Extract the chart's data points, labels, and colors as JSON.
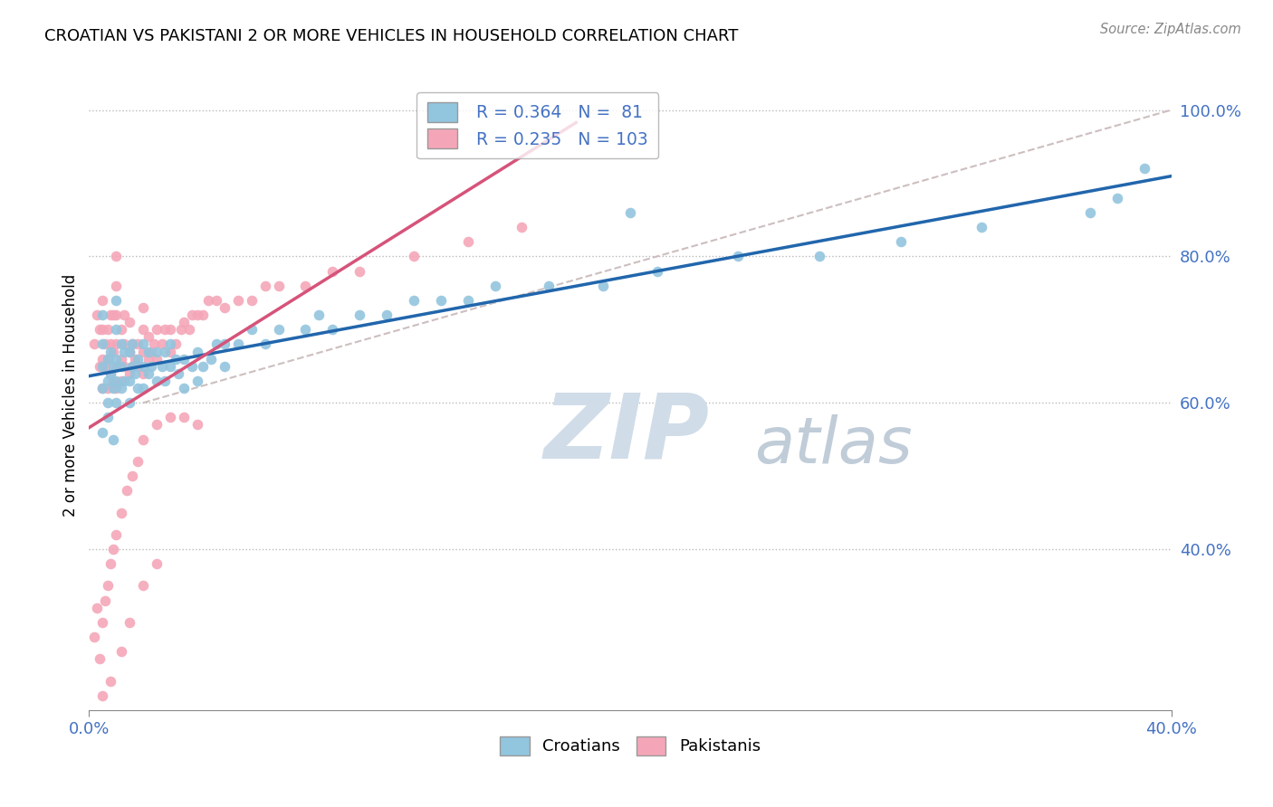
{
  "title": "CROATIAN VS PAKISTANI 2 OR MORE VEHICLES IN HOUSEHOLD CORRELATION CHART",
  "source": "Source: ZipAtlas.com",
  "ylabel": "2 or more Vehicles in Household",
  "xmin": 0.0,
  "xmax": 0.4,
  "ymin": 0.18,
  "ymax": 1.04,
  "yticks": [
    0.4,
    0.6,
    0.8,
    1.0
  ],
  "ytick_labels": [
    "40.0%",
    "60.0%",
    "80.0%",
    "100.0%"
  ],
  "croatian_R": 0.364,
  "croatian_N": 81,
  "pakistani_R": 0.235,
  "pakistani_N": 103,
  "blue_color": "#92c5de",
  "pink_color": "#f4a6b8",
  "blue_line_color": "#2166ac",
  "pink_line_color": "#d6537a",
  "trendline_color": "#c8b8b8",
  "legend_text_color": "#4472c4",
  "zip_color": "#d0dce8",
  "atlas_color": "#c0ccd8",
  "croatian_x": [
    0.005,
    0.005,
    0.005,
    0.005,
    0.007,
    0.007,
    0.007,
    0.008,
    0.008,
    0.009,
    0.009,
    0.01,
    0.01,
    0.01,
    0.01,
    0.01,
    0.012,
    0.012,
    0.012,
    0.013,
    0.013,
    0.015,
    0.015,
    0.015,
    0.016,
    0.016,
    0.017,
    0.018,
    0.018,
    0.02,
    0.02,
    0.02,
    0.022,
    0.022,
    0.023,
    0.025,
    0.025,
    0.027,
    0.028,
    0.028,
    0.03,
    0.03,
    0.032,
    0.033,
    0.035,
    0.035,
    0.038,
    0.04,
    0.04,
    0.042,
    0.045,
    0.047,
    0.05,
    0.05,
    0.055,
    0.06,
    0.065,
    0.07,
    0.08,
    0.085,
    0.09,
    0.1,
    0.11,
    0.12,
    0.13,
    0.14,
    0.15,
    0.17,
    0.19,
    0.21,
    0.24,
    0.27,
    0.3,
    0.33,
    0.37,
    0.38,
    0.39,
    0.005,
    0.007,
    0.009,
    0.2
  ],
  "croatian_y": [
    0.62,
    0.65,
    0.68,
    0.72,
    0.6,
    0.63,
    0.66,
    0.64,
    0.67,
    0.62,
    0.65,
    0.6,
    0.63,
    0.66,
    0.7,
    0.74,
    0.62,
    0.65,
    0.68,
    0.63,
    0.67,
    0.6,
    0.63,
    0.67,
    0.65,
    0.68,
    0.64,
    0.62,
    0.66,
    0.62,
    0.65,
    0.68,
    0.64,
    0.67,
    0.65,
    0.63,
    0.67,
    0.65,
    0.63,
    0.67,
    0.65,
    0.68,
    0.66,
    0.64,
    0.62,
    0.66,
    0.65,
    0.63,
    0.67,
    0.65,
    0.66,
    0.68,
    0.65,
    0.68,
    0.68,
    0.7,
    0.68,
    0.7,
    0.7,
    0.72,
    0.7,
    0.72,
    0.72,
    0.74,
    0.74,
    0.74,
    0.76,
    0.76,
    0.76,
    0.78,
    0.8,
    0.8,
    0.82,
    0.84,
    0.86,
    0.88,
    0.92,
    0.56,
    0.58,
    0.55,
    0.86
  ],
  "pakistani_x": [
    0.002,
    0.003,
    0.004,
    0.004,
    0.005,
    0.005,
    0.005,
    0.005,
    0.006,
    0.006,
    0.007,
    0.007,
    0.007,
    0.008,
    0.008,
    0.008,
    0.009,
    0.009,
    0.009,
    0.01,
    0.01,
    0.01,
    0.01,
    0.01,
    0.01,
    0.012,
    0.012,
    0.012,
    0.013,
    0.013,
    0.013,
    0.015,
    0.015,
    0.015,
    0.016,
    0.016,
    0.017,
    0.018,
    0.018,
    0.02,
    0.02,
    0.02,
    0.02,
    0.022,
    0.022,
    0.023,
    0.024,
    0.025,
    0.025,
    0.027,
    0.028,
    0.03,
    0.03,
    0.032,
    0.034,
    0.035,
    0.037,
    0.038,
    0.04,
    0.042,
    0.044,
    0.047,
    0.05,
    0.055,
    0.06,
    0.065,
    0.07,
    0.08,
    0.09,
    0.1,
    0.12,
    0.14,
    0.16,
    0.002,
    0.003,
    0.004,
    0.005,
    0.006,
    0.007,
    0.008,
    0.009,
    0.01,
    0.012,
    0.014,
    0.016,
    0.018,
    0.02,
    0.025,
    0.03,
    0.035,
    0.04,
    0.005,
    0.008,
    0.012,
    0.015,
    0.02,
    0.025
  ],
  "pakistani_y": [
    0.68,
    0.72,
    0.65,
    0.7,
    0.62,
    0.66,
    0.7,
    0.74,
    0.65,
    0.68,
    0.62,
    0.66,
    0.7,
    0.64,
    0.68,
    0.72,
    0.63,
    0.67,
    0.72,
    0.62,
    0.65,
    0.68,
    0.72,
    0.76,
    0.8,
    0.63,
    0.66,
    0.7,
    0.65,
    0.68,
    0.72,
    0.64,
    0.67,
    0.71,
    0.65,
    0.68,
    0.66,
    0.65,
    0.68,
    0.64,
    0.67,
    0.7,
    0.73,
    0.66,
    0.69,
    0.67,
    0.68,
    0.66,
    0.7,
    0.68,
    0.7,
    0.67,
    0.7,
    0.68,
    0.7,
    0.71,
    0.7,
    0.72,
    0.72,
    0.72,
    0.74,
    0.74,
    0.73,
    0.74,
    0.74,
    0.76,
    0.76,
    0.76,
    0.78,
    0.78,
    0.8,
    0.82,
    0.84,
    0.28,
    0.32,
    0.25,
    0.3,
    0.33,
    0.35,
    0.38,
    0.4,
    0.42,
    0.45,
    0.48,
    0.5,
    0.52,
    0.55,
    0.57,
    0.58,
    0.58,
    0.57,
    0.2,
    0.22,
    0.26,
    0.3,
    0.35,
    0.38
  ]
}
